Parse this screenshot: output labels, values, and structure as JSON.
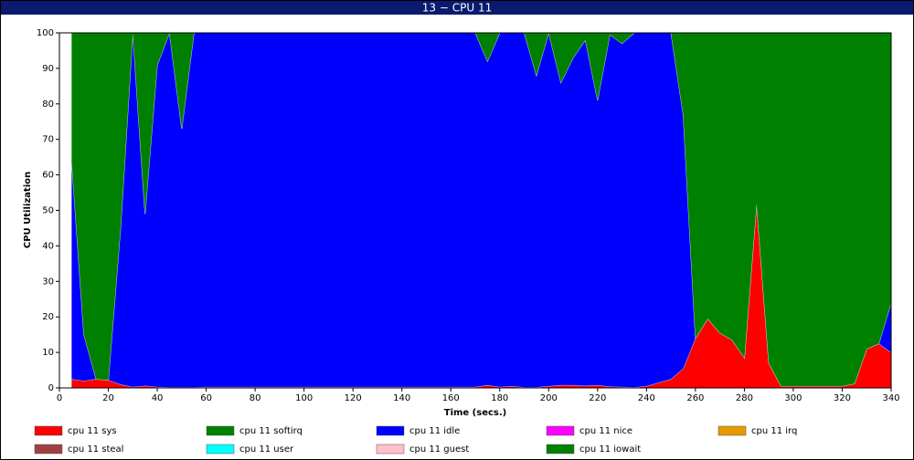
{
  "window_title": "13 − CPU 11",
  "chart_data": {
    "type": "stacked-area",
    "xlabel": "Time (secs.)",
    "ylabel": "CPU Utilization",
    "xlim": [
      0,
      340
    ],
    "ylim": [
      0,
      100
    ],
    "xticks": [
      0,
      20,
      40,
      60,
      80,
      100,
      120,
      140,
      160,
      180,
      200,
      220,
      240,
      260,
      280,
      300,
      320,
      340
    ],
    "yticks": [
      0,
      10,
      20,
      30,
      40,
      50,
      60,
      70,
      80,
      90,
      100
    ],
    "grid": false,
    "x": [
      5,
      10,
      15,
      20,
      25,
      30,
      35,
      40,
      45,
      50,
      55,
      60,
      65,
      70,
      75,
      80,
      85,
      90,
      95,
      100,
      105,
      110,
      115,
      120,
      125,
      130,
      135,
      140,
      145,
      150,
      155,
      160,
      165,
      170,
      175,
      180,
      185,
      190,
      195,
      200,
      205,
      210,
      215,
      220,
      225,
      230,
      235,
      240,
      245,
      250,
      255,
      260,
      265,
      270,
      275,
      280,
      285,
      290,
      295,
      300,
      305,
      310,
      315,
      320,
      325,
      330,
      335,
      340
    ],
    "series": [
      {
        "name": "cpu 11 sys",
        "color": "#ff0000",
        "values": [
          2.5,
          2,
          2.5,
          2.2,
          1,
          0.3,
          0.6,
          0.3,
          0.2,
          0.2,
          0.2,
          0.3,
          0.3,
          0.3,
          0.3,
          0.3,
          0.3,
          0.3,
          0.3,
          0.3,
          0.3,
          0.3,
          0.3,
          0.3,
          0.3,
          0.3,
          0.3,
          0.3,
          0.3,
          0.3,
          0.3,
          0.3,
          0.3,
          0.3,
          0.8,
          0.3,
          0.5,
          0.2,
          0.2,
          0.5,
          0.8,
          0.8,
          0.6,
          0.8,
          0.4,
          0.3,
          0.2,
          0.5,
          1.5,
          2.5,
          5.5,
          14,
          19.5,
          15.5,
          13.5,
          8.5,
          52,
          7,
          0.5,
          0.5,
          0.5,
          0.5,
          0.5,
          0.5,
          1.2,
          11,
          12.5,
          10
        ]
      },
      {
        "name": "cpu 11 softirq",
        "color": "#008000",
        "values": [
          0,
          0,
          0,
          0,
          0,
          0,
          0,
          0,
          0,
          0,
          0,
          0,
          0,
          0,
          0,
          0,
          0,
          0,
          0,
          0,
          0,
          0,
          0,
          0,
          0,
          0,
          0,
          0,
          0,
          0,
          0,
          0,
          0,
          0,
          0,
          0,
          0,
          0,
          0,
          0,
          0,
          0,
          0,
          0,
          0,
          0,
          0,
          0,
          0,
          0,
          0,
          0,
          0,
          0,
          0,
          0,
          0,
          0,
          0,
          0,
          0,
          0,
          0,
          0,
          0,
          0,
          0,
          0
        ]
      },
      {
        "name": "cpu 11 idle",
        "color": "#0000ff",
        "values": [
          61.5,
          13,
          0,
          0,
          44,
          99.7,
          48.4,
          90.7,
          99.8,
          72.8,
          99.8,
          99.7,
          99.7,
          99.7,
          99.7,
          99.7,
          99.7,
          99.7,
          99.7,
          99.7,
          99.7,
          99.7,
          99.7,
          99.7,
          99.7,
          99.7,
          99.7,
          99.7,
          99.7,
          99.7,
          99.7,
          99.7,
          99.7,
          99.7,
          91.2,
          99.7,
          99.5,
          99.8,
          87.8,
          99.5,
          85.2,
          92.2,
          97.4,
          80.2,
          99.1,
          96.7,
          99.8,
          99.5,
          98.5,
          97.5,
          71.5,
          0,
          0,
          0,
          0,
          0,
          0,
          0,
          0,
          0,
          0,
          0,
          0,
          0,
          0,
          0,
          0,
          14
        ]
      },
      {
        "name": "cpu 11 nice",
        "color": "#ff00ff",
        "values": [
          0,
          0,
          0,
          0,
          0,
          0,
          0,
          0,
          0,
          0,
          0,
          0,
          0,
          0,
          0,
          0,
          0,
          0,
          0,
          0,
          0,
          0,
          0,
          0,
          0,
          0,
          0,
          0,
          0,
          0,
          0,
          0,
          0,
          0,
          0,
          0,
          0,
          0,
          0,
          0,
          0,
          0,
          0,
          0,
          0,
          0,
          0,
          0,
          0,
          0,
          0,
          0,
          0,
          0,
          0,
          0,
          0,
          0,
          0,
          0,
          0,
          0,
          0,
          0,
          0,
          0,
          0,
          0
        ]
      },
      {
        "name": "cpu 11 irq",
        "color": "#e69a00",
        "values": [
          0,
          0,
          0,
          0,
          0,
          0,
          0,
          0,
          0,
          0,
          0,
          0,
          0,
          0,
          0,
          0,
          0,
          0,
          0,
          0,
          0,
          0,
          0,
          0,
          0,
          0,
          0,
          0,
          0,
          0,
          0,
          0,
          0,
          0,
          0,
          0,
          0,
          0,
          0,
          0,
          0,
          0,
          0,
          0,
          0,
          0,
          0,
          0,
          0,
          0,
          0,
          0,
          0,
          0,
          0,
          0,
          0,
          0,
          0,
          0,
          0,
          0,
          0,
          0,
          0,
          0,
          0,
          0
        ]
      },
      {
        "name": "cpu 11 steal",
        "color": "#a04040",
        "values": [
          0,
          0,
          0,
          0,
          0,
          0,
          0,
          0,
          0,
          0,
          0,
          0,
          0,
          0,
          0,
          0,
          0,
          0,
          0,
          0,
          0,
          0,
          0,
          0,
          0,
          0,
          0,
          0,
          0,
          0,
          0,
          0,
          0,
          0,
          0,
          0,
          0,
          0,
          0,
          0,
          0,
          0,
          0,
          0,
          0,
          0,
          0,
          0,
          0,
          0,
          0,
          0,
          0,
          0,
          0,
          0,
          0,
          0,
          0,
          0,
          0,
          0,
          0,
          0,
          0,
          0,
          0,
          0
        ]
      },
      {
        "name": "cpu 11 user",
        "color": "#00ffff",
        "values": [
          0,
          0,
          0,
          0,
          0,
          0,
          0,
          0,
          0,
          0,
          0,
          0,
          0,
          0,
          0,
          0,
          0,
          0,
          0,
          0,
          0,
          0,
          0,
          0,
          0,
          0,
          0,
          0,
          0,
          0,
          0,
          0,
          0,
          0,
          0,
          0,
          0,
          0,
          0,
          0,
          0,
          0,
          0,
          0,
          0,
          0,
          0,
          0,
          0,
          0,
          0,
          0,
          0,
          0,
          0,
          0,
          0,
          0,
          0,
          0,
          0,
          0,
          0,
          0,
          0,
          0,
          0,
          0
        ]
      },
      {
        "name": "cpu 11 guest",
        "color": "#ffc0cb",
        "values": [
          0,
          0,
          0,
          0,
          0,
          0,
          0,
          0,
          0,
          0,
          0,
          0,
          0,
          0,
          0,
          0,
          0,
          0,
          0,
          0,
          0,
          0,
          0,
          0,
          0,
          0,
          0,
          0,
          0,
          0,
          0,
          0,
          0,
          0,
          0,
          0,
          0,
          0,
          0,
          0,
          0,
          0,
          0,
          0,
          0,
          0,
          0,
          0,
          0,
          0,
          0,
          0,
          0,
          0,
          0,
          0,
          0,
          0,
          0,
          0,
          0,
          0,
          0,
          0,
          0,
          0,
          0,
          0
        ]
      },
      {
        "name": "cpu 11 iowait",
        "color": "#008000",
        "values": [
          36,
          85,
          97.5,
          97.8,
          55,
          0,
          51,
          9,
          0,
          27,
          0,
          0,
          0,
          0,
          0,
          0,
          0,
          0,
          0,
          0,
          0,
          0,
          0,
          0,
          0,
          0,
          0,
          0,
          0,
          0,
          0,
          0,
          0,
          0,
          8,
          0,
          0,
          0,
          12,
          0,
          14,
          7,
          2,
          19,
          0.5,
          3,
          0,
          0,
          0,
          0,
          23,
          86,
          80.5,
          84.5,
          86.5,
          91.5,
          48,
          93,
          99.5,
          99.5,
          99.5,
          99.5,
          99.5,
          99.5,
          98.8,
          89,
          87.5,
          76
        ]
      }
    ]
  }
}
